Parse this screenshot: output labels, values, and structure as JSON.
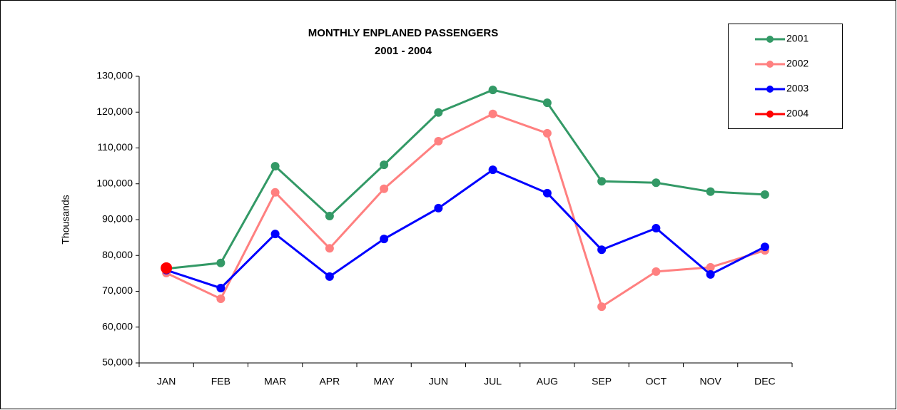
{
  "chart_data": {
    "type": "line",
    "title": "MONTHLY ENPLANED PASSENGERS",
    "subtitle": "2001 - 2004",
    "y_label": "Thousands",
    "categories": [
      "JAN",
      "FEB",
      "MAR",
      "APR",
      "MAY",
      "JUN",
      "JUL",
      "AUG",
      "SEP",
      "OCT",
      "NOV",
      "DEC"
    ],
    "series": [
      {
        "name": "2001",
        "color": "#339966",
        "values": [
          76300,
          77900,
          104900,
          91000,
          105300,
          119900,
          126200,
          122600,
          100700,
          100300,
          97800,
          97000
        ]
      },
      {
        "name": "2002",
        "color": "#ff8080",
        "values": [
          75100,
          67900,
          97600,
          82000,
          98600,
          111900,
          119500,
          114100,
          65700,
          75500,
          76700,
          81400
        ]
      },
      {
        "name": "2003",
        "color": "#0000ff",
        "values": [
          75900,
          70900,
          86000,
          74100,
          84600,
          93200,
          103900,
          97400,
          81600,
          87600,
          74700,
          82400
        ]
      },
      {
        "name": "2004",
        "color": "#ff0000",
        "values": [
          76500,
          null,
          null,
          null,
          null,
          null,
          null,
          null,
          null,
          null,
          null,
          null
        ]
      }
    ],
    "ylim": [
      50000,
      130000
    ],
    "yticks": [
      {
        "value": 50000,
        "label": "50,000"
      },
      {
        "value": 60000,
        "label": "60,000"
      },
      {
        "value": 70000,
        "label": "70,000"
      },
      {
        "value": 80000,
        "label": "80,000"
      },
      {
        "value": 90000,
        "label": "90,000"
      },
      {
        "value": 100000,
        "label": "100,000"
      },
      {
        "value": 110000,
        "label": "110,000"
      },
      {
        "value": 120000,
        "label": "120,000"
      },
      {
        "value": 130000,
        "label": "130,000"
      }
    ],
    "legend": "top-right"
  }
}
